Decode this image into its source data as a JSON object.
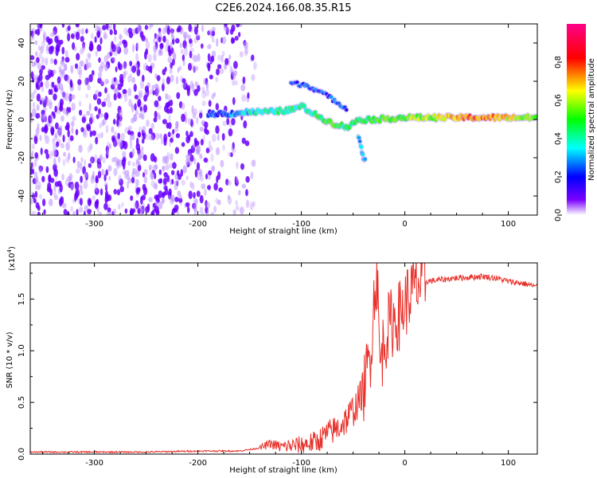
{
  "title": "C2E6.2024.166.08.35.R15",
  "chart_data": [
    {
      "type": "heatmap",
      "xlabel": "Height of straight line (km)",
      "ylabel": "Frequency (Hz)",
      "xlim": [
        -362,
        128
      ],
      "ylim": [
        -50,
        50
      ],
      "xticks": [
        -300,
        -200,
        -100,
        0,
        100
      ],
      "xtick_labels": [
        "-300",
        "-200",
        "-100",
        "0",
        "100"
      ],
      "yticks": [
        -40,
        -20,
        0,
        20,
        40
      ],
      "ytick_labels": [
        "-40",
        "-20",
        "0",
        "20",
        "40"
      ],
      "colorbar": {
        "label": "Normalized spectral amplitude",
        "range": [
          0,
          1
        ],
        "ticks": [
          0.0,
          0.2,
          0.4,
          0.6,
          0.8
        ],
        "tick_labels": [
          "0.0",
          "0.2",
          "0.4",
          "0.6",
          "0.8"
        ],
        "colors": [
          "#ffffff",
          "#7a00ff",
          "#0000ff",
          "#00ffff",
          "#00ff00",
          "#ffff00",
          "#ff0000",
          "#ff00aa"
        ]
      },
      "noise_region": {
        "x_range": [
          -362,
          -160
        ],
        "f_range": [
          -50,
          50
        ],
        "amplitude": 0.1
      },
      "ridge": [
        {
          "x": -190,
          "f": 3,
          "amp": 0.2
        },
        {
          "x": -170,
          "f": 3,
          "amp": 0.25
        },
        {
          "x": -150,
          "f": 4,
          "amp": 0.35
        },
        {
          "x": -130,
          "f": 4,
          "amp": 0.4
        },
        {
          "x": -110,
          "f": 5,
          "amp": 0.45
        },
        {
          "x": -100,
          "f": 7,
          "amp": 0.4
        },
        {
          "x": -85,
          "f": 2,
          "amp": 0.45
        },
        {
          "x": -70,
          "f": -2,
          "amp": 0.5
        },
        {
          "x": -55,
          "f": -4,
          "amp": 0.45
        },
        {
          "x": -45,
          "f": 0,
          "amp": 0.45
        },
        {
          "x": -30,
          "f": 0,
          "amp": 0.5
        },
        {
          "x": 0,
          "f": 1,
          "amp": 0.55
        },
        {
          "x": 30,
          "f": 1,
          "amp": 0.6
        },
        {
          "x": 60,
          "f": 1,
          "amp": 0.75
        },
        {
          "x": 90,
          "f": 1,
          "amp": 0.7
        },
        {
          "x": 128,
          "f": 1,
          "amp": 0.55
        }
      ],
      "upper_arc": [
        {
          "x": -110,
          "f": 19
        },
        {
          "x": -95,
          "f": 18
        },
        {
          "x": -80,
          "f": 14
        },
        {
          "x": -65,
          "f": 9
        },
        {
          "x": -55,
          "f": 5
        }
      ],
      "lower_branch": [
        {
          "x": -45,
          "f": -8
        },
        {
          "x": -42,
          "f": -15
        },
        {
          "x": -40,
          "f": -20
        },
        {
          "x": -38,
          "f": -22
        }
      ]
    },
    {
      "type": "line",
      "xlabel": "Height of straight line (km)",
      "ylabel": "SNR (10 * v/v)",
      "y_multiplier": "(x10",
      "y_multiplier_exp": "4",
      "y_multiplier_close": ")",
      "xlim": [
        -362,
        128
      ],
      "ylim": [
        0,
        1.85
      ],
      "xticks": [
        -300,
        -200,
        -100,
        0,
        100
      ],
      "xtick_labels": [
        "-300",
        "-200",
        "-100",
        "0",
        "100"
      ],
      "yticks": [
        0.0,
        0.5,
        1.0,
        1.5
      ],
      "ytick_labels": [
        "0.0",
        "0.5",
        "1.0",
        "1.5"
      ],
      "series": [
        {
          "name": "SNR",
          "color": "#e8302a",
          "points": [
            [
              -362,
              0.02
            ],
            [
              -300,
              0.02
            ],
            [
              -250,
              0.02
            ],
            [
              -200,
              0.03
            ],
            [
              -160,
              0.03
            ],
            [
              -140,
              0.06
            ],
            [
              -130,
              0.1
            ],
            [
              -120,
              0.07
            ],
            [
              -100,
              0.09
            ],
            [
              -85,
              0.12
            ],
            [
              -75,
              0.2
            ],
            [
              -65,
              0.25
            ],
            [
              -55,
              0.35
            ],
            [
              -45,
              0.5
            ],
            [
              -38,
              0.7
            ],
            [
              -33,
              1.0
            ],
            [
              -29,
              1.6
            ],
            [
              -27,
              1.78
            ],
            [
              -24,
              0.85
            ],
            [
              -20,
              1.1
            ],
            [
              -15,
              1.25
            ],
            [
              -10,
              1.3
            ],
            [
              -5,
              1.35
            ],
            [
              0,
              1.45
            ],
            [
              5,
              1.55
            ],
            [
              10,
              1.62
            ],
            [
              20,
              1.67
            ],
            [
              30,
              1.68
            ],
            [
              45,
              1.7
            ],
            [
              60,
              1.71
            ],
            [
              75,
              1.72
            ],
            [
              90,
              1.7
            ],
            [
              100,
              1.67
            ],
            [
              115,
              1.65
            ],
            [
              128,
              1.62
            ]
          ]
        }
      ]
    }
  ]
}
